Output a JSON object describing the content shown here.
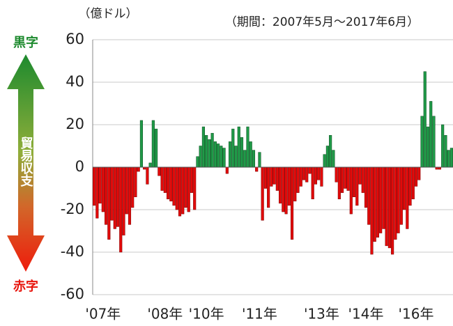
{
  "chart_data": {
    "type": "bar",
    "unit_label": "（億ドル）",
    "subtitle": "（期間：2007年5月～2017年6月）",
    "annotations": {
      "surplus": "黒字",
      "deficit": "赤字",
      "axis_label": "貿易収支"
    },
    "positive_color": "#1f9a48",
    "negative_color": "#e20a0a",
    "ylim": [
      -60,
      60
    ],
    "yticks": [
      -60,
      -40,
      -20,
      0,
      20,
      40,
      60
    ],
    "grid": true,
    "categories": [
      null,
      null,
      null,
      "'07年",
      null,
      null,
      null,
      null,
      null,
      null,
      null,
      null,
      null,
      null,
      null,
      null,
      null,
      null,
      null,
      null,
      null,
      null,
      null,
      null,
      "'08年",
      null,
      null,
      null,
      null,
      null,
      null,
      null,
      null,
      null,
      null,
      null,
      null,
      null,
      "'10年",
      null,
      null,
      null,
      null,
      null,
      null,
      null,
      null,
      null,
      null,
      null,
      null,
      null,
      null,
      null,
      null,
      null,
      "'11年",
      null,
      null,
      null,
      null,
      null,
      null,
      null,
      null,
      null,
      null,
      null,
      null,
      null,
      null,
      null,
      null,
      null,
      null,
      null,
      null,
      "'13年",
      null,
      null,
      null,
      null,
      null,
      null,
      null,
      null,
      null,
      null,
      null,
      null,
      null,
      null,
      "'14年",
      null,
      null,
      null,
      null,
      null,
      null,
      null,
      null,
      null,
      null,
      null,
      null,
      null,
      null,
      null,
      null,
      "'16年",
      null,
      null,
      null,
      null,
      null,
      null,
      null,
      null,
      null,
      null,
      null,
      null
    ],
    "values": [
      -18,
      -24,
      -17,
      -21,
      -27,
      -34,
      -25,
      -29,
      -28,
      -40,
      -32,
      -22,
      -27,
      -19,
      -14,
      -2,
      22,
      -1,
      -8,
      2,
      22,
      18,
      -4,
      -11,
      -12,
      -15,
      -16,
      -18,
      -20,
      -23,
      -22,
      -19,
      -21,
      -12,
      -20,
      5,
      10,
      19,
      15,
      13,
      16,
      12,
      11,
      10,
      9,
      -3,
      12,
      18,
      10,
      19,
      14,
      8,
      19,
      12,
      8,
      -2,
      7,
      -25,
      -10,
      -19,
      -9,
      -8,
      -11,
      -17,
      -21,
      -22,
      -18,
      -34,
      -16,
      -12,
      -9,
      -6,
      -7,
      -3,
      -15,
      -8,
      -6,
      -9,
      6,
      10,
      15,
      8,
      -7,
      -15,
      -12,
      -10,
      -11,
      -22,
      -14,
      -18,
      -8,
      -12,
      -19,
      -27,
      -41,
      -35,
      -33,
      -31,
      -29,
      -37,
      -38,
      -41,
      -34,
      -31,
      -27,
      -20,
      -29,
      -18,
      -15,
      -9,
      -6,
      24,
      45,
      19,
      31,
      24,
      -1,
      -1,
      20,
      15,
      8,
      9
    ]
  }
}
